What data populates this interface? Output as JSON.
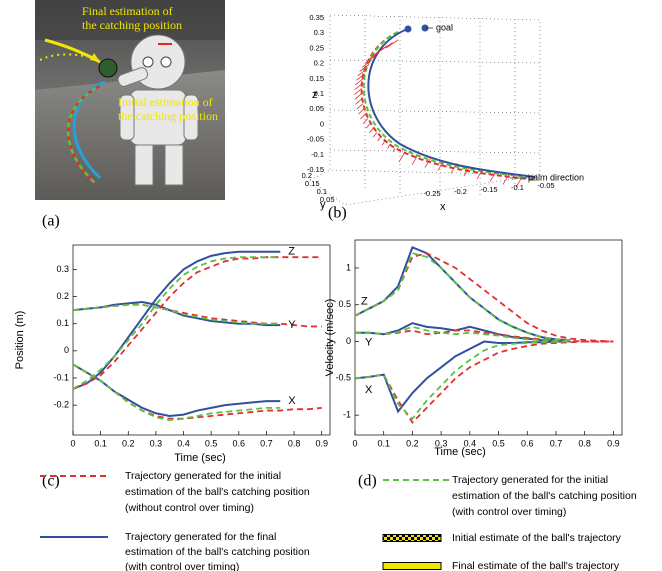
{
  "panel_labels": [
    "(a)",
    "(b)",
    "(c)",
    "(d)"
  ],
  "panel_a": {
    "annotations": [
      [
        "Final estimation of",
        "the catching position"
      ],
      [
        "Initial estimation of",
        "the catching position"
      ]
    ]
  },
  "panel_b": {
    "axis_labels": {
      "x": "x",
      "y": "y",
      "z": "z"
    },
    "zticks": [
      0.35,
      0.3,
      0.25,
      0.2,
      0.15,
      0.1,
      0.05,
      0,
      -0.05,
      -0.1,
      -0.15
    ],
    "yticks": [
      0.2,
      0.15,
      0.1,
      0.05
    ],
    "xticks": [
      -0.25,
      -0.2,
      -0.15,
      -0.1,
      -0.05
    ],
    "annotations": [
      "goal",
      "palm direction"
    ]
  },
  "chart_data": [
    {
      "type": "line",
      "xlabel": "Time (sec)",
      "ylabel": "Position (m)",
      "xlim": [
        0,
        0.93
      ],
      "ylim": [
        -0.31,
        0.39
      ],
      "xticks": [
        0,
        0.1,
        0.2,
        0.3,
        0.4,
        0.5,
        0.6,
        0.7,
        0.8,
        0.9
      ],
      "yticks": [
        -0.2,
        -0.1,
        0,
        0.1,
        0.2,
        0.3
      ],
      "x": [
        0,
        0.05,
        0.1,
        0.15,
        0.2,
        0.25,
        0.3,
        0.35,
        0.4,
        0.45,
        0.5,
        0.55,
        0.6,
        0.65,
        0.7,
        0.75,
        0.8,
        0.85,
        0.9
      ],
      "annotations": [
        "Z",
        "Y",
        "X"
      ],
      "series": [
        {
          "color": "#3050a0",
          "dashed": false,
          "values": [
            -0.14,
            -0.12,
            -0.08,
            -0.02,
            0.05,
            0.12,
            0.19,
            0.25,
            0.3,
            0.33,
            0.35,
            0.36,
            0.365,
            0.365,
            0.365,
            0.365,
            null,
            null,
            null
          ]
        },
        {
          "color": "#3050a0",
          "dashed": false,
          "values": [
            0.15,
            0.155,
            0.16,
            0.17,
            0.175,
            0.18,
            0.17,
            0.15,
            0.13,
            0.12,
            0.11,
            0.105,
            0.1,
            0.1,
            0.095,
            0.095,
            null,
            null,
            null
          ]
        },
        {
          "color": "#3050a0",
          "dashed": false,
          "values": [
            -0.05,
            -0.08,
            -0.11,
            -0.15,
            -0.18,
            -0.21,
            -0.23,
            -0.24,
            -0.235,
            -0.22,
            -0.21,
            -0.2,
            -0.195,
            -0.19,
            -0.185,
            -0.185,
            null,
            null,
            null
          ]
        },
        {
          "color": "#e03030",
          "dashed": true,
          "values": [
            -0.14,
            -0.12,
            -0.09,
            -0.04,
            0.02,
            0.08,
            0.14,
            0.2,
            0.25,
            0.29,
            0.31,
            0.33,
            0.34,
            0.34,
            0.345,
            0.345,
            0.345,
            0.345,
            0.345
          ]
        },
        {
          "color": "#e03030",
          "dashed": true,
          "values": [
            0.15,
            0.155,
            0.16,
            0.165,
            0.17,
            0.17,
            0.16,
            0.15,
            0.14,
            0.13,
            0.12,
            0.115,
            0.11,
            0.105,
            0.1,
            0.1,
            0.095,
            0.09,
            0.09
          ]
        },
        {
          "color": "#e03030",
          "dashed": true,
          "values": [
            -0.05,
            -0.08,
            -0.11,
            -0.15,
            -0.19,
            -0.22,
            -0.24,
            -0.25,
            -0.25,
            -0.245,
            -0.24,
            -0.235,
            -0.23,
            -0.225,
            -0.22,
            -0.22,
            -0.215,
            -0.215,
            -0.21
          ]
        },
        {
          "color": "#5cc040",
          "dashed": true,
          "values": [
            -0.14,
            -0.11,
            -0.07,
            -0.02,
            0.04,
            0.1,
            0.17,
            0.23,
            0.28,
            0.31,
            0.33,
            0.34,
            0.345,
            0.345,
            0.345,
            0.345,
            null,
            null,
            null
          ]
        },
        {
          "color": "#5cc040",
          "dashed": true,
          "values": [
            0.15,
            0.155,
            0.16,
            0.165,
            0.17,
            0.17,
            0.16,
            0.15,
            0.135,
            0.125,
            0.115,
            0.11,
            0.105,
            0.1,
            0.1,
            0.1,
            null,
            null,
            null
          ]
        },
        {
          "color": "#5cc040",
          "dashed": true,
          "values": [
            -0.05,
            -0.08,
            -0.11,
            -0.15,
            -0.19,
            -0.22,
            -0.245,
            -0.255,
            -0.25,
            -0.24,
            -0.23,
            -0.225,
            -0.22,
            -0.215,
            -0.21,
            -0.21,
            null,
            null,
            null
          ]
        }
      ]
    },
    {
      "type": "line",
      "xlabel": "Time (sec)",
      "ylabel": "Velocity (m/sec)",
      "xlim": [
        0,
        0.93
      ],
      "ylim": [
        -1.27,
        1.38
      ],
      "xticks": [
        0,
        0.1,
        0.2,
        0.3,
        0.4,
        0.5,
        0.6,
        0.7,
        0.8,
        0.9
      ],
      "yticks": [
        -1,
        -0.5,
        0,
        0.5,
        1
      ],
      "x": [
        0,
        0.05,
        0.1,
        0.15,
        0.2,
        0.25,
        0.3,
        0.35,
        0.4,
        0.45,
        0.5,
        0.55,
        0.6,
        0.65,
        0.7,
        0.75,
        0.8,
        0.85,
        0.9
      ],
      "annotations": [
        "Z",
        "Y",
        "X"
      ],
      "series": [
        {
          "color": "#3050a0",
          "dashed": false,
          "values": [
            0.35,
            0.45,
            0.55,
            0.75,
            1.28,
            1.2,
            1.0,
            0.8,
            0.6,
            0.45,
            0.3,
            0.2,
            0.12,
            0.06,
            0.03,
            0.02,
            null,
            null,
            null
          ]
        },
        {
          "color": "#3050a0",
          "dashed": false,
          "values": [
            0.12,
            0.12,
            0.1,
            0.15,
            0.25,
            0.2,
            0.18,
            0.15,
            0.2,
            0.15,
            0.1,
            0.06,
            0.04,
            0.02,
            0.01,
            0,
            null,
            null,
            null
          ]
        },
        {
          "color": "#3050a0",
          "dashed": false,
          "values": [
            -0.5,
            -0.48,
            -0.45,
            -0.95,
            -0.7,
            -0.5,
            -0.35,
            -0.2,
            -0.1,
            0,
            -0.02,
            -0.02,
            -0.01,
            -0.01,
            0,
            0,
            null,
            null,
            null
          ]
        },
        {
          "color": "#e03030",
          "dashed": true,
          "values": [
            0.35,
            0.45,
            0.55,
            0.7,
            1.15,
            1.2,
            1.1,
            1.0,
            0.85,
            0.7,
            0.55,
            0.4,
            0.25,
            0.15,
            0.08,
            0.04,
            0.02,
            0.01,
            0
          ]
        },
        {
          "color": "#e03030",
          "dashed": true,
          "values": [
            0.12,
            0.12,
            0.1,
            0.12,
            0.15,
            0.1,
            0.12,
            0.15,
            0.15,
            0.12,
            0.1,
            0.07,
            0.05,
            0.03,
            0.02,
            0.01,
            0,
            0,
            0
          ]
        },
        {
          "color": "#e03030",
          "dashed": true,
          "values": [
            -0.5,
            -0.48,
            -0.45,
            -0.8,
            -1.1,
            -0.9,
            -0.7,
            -0.5,
            -0.35,
            -0.25,
            -0.15,
            -0.1,
            -0.06,
            -0.03,
            -0.02,
            -0.01,
            0,
            0,
            0
          ]
        },
        {
          "color": "#5cc040",
          "dashed": true,
          "values": [
            0.35,
            0.45,
            0.55,
            0.7,
            1.2,
            1.15,
            1.0,
            0.8,
            0.6,
            0.45,
            0.3,
            0.2,
            0.12,
            0.06,
            0.03,
            0.02,
            null,
            null,
            null
          ]
        },
        {
          "color": "#5cc040",
          "dashed": true,
          "values": [
            0.12,
            0.12,
            0.1,
            0.13,
            0.2,
            0.15,
            0.12,
            0.1,
            0.12,
            0.1,
            0.08,
            0.05,
            0.03,
            0.02,
            0.01,
            0,
            null,
            null,
            null
          ]
        },
        {
          "color": "#5cc040",
          "dashed": true,
          "values": [
            -0.5,
            -0.48,
            -0.45,
            -0.85,
            -1.05,
            -0.8,
            -0.6,
            -0.4,
            -0.25,
            -0.12,
            -0.05,
            -0.03,
            -0.02,
            -0.01,
            0,
            0,
            null,
            null,
            null
          ]
        }
      ]
    }
  ],
  "legend": [
    {
      "style": "dashed",
      "color": "#e03030",
      "lines": [
        "Trajectory generated for the initial",
        "estimation of the ball's catching position",
        "(without control over timing)"
      ]
    },
    {
      "style": "solid",
      "color": "#3050a0",
      "lines": [
        "Trajectory generated for the final",
        "estimation of the ball's catching position",
        "(with control over timing)"
      ]
    },
    {
      "style": "dashed",
      "color": "#5cc040",
      "lines": [
        "Trajectory generated for the initial",
        "estimation of the ball's catching position",
        "(with control over timing)"
      ]
    },
    {
      "style": "checker",
      "color": "#f2e600",
      "lines": [
        "Initial estimate of the ball's trajectory"
      ]
    },
    {
      "style": "bar",
      "color": "#f2e600",
      "lines": [
        "Final estimate of the ball's trajectory"
      ]
    }
  ]
}
